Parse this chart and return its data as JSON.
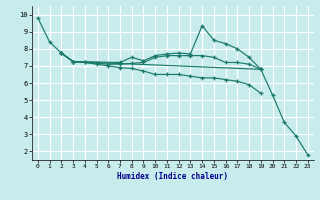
{
  "title": "",
  "xlabel": "Humidex (Indice chaleur)",
  "bg_color": "#c8ecec",
  "grid_color": "#ffffff",
  "line_color": "#1a7a6a",
  "xlim": [
    -0.5,
    23.5
  ],
  "ylim": [
    1.5,
    10.5
  ],
  "xticks": [
    0,
    1,
    2,
    3,
    4,
    5,
    6,
    7,
    8,
    9,
    10,
    11,
    12,
    13,
    14,
    15,
    16,
    17,
    18,
    19,
    20,
    21,
    22,
    23
  ],
  "yticks": [
    2,
    3,
    4,
    5,
    6,
    7,
    8,
    9,
    10
  ],
  "lines": [
    {
      "x": [
        0,
        1,
        2,
        3,
        19,
        20,
        21,
        22,
        23
      ],
      "y": [
        9.8,
        8.4,
        7.75,
        7.25,
        6.8,
        5.3,
        3.7,
        2.9,
        1.8
      ]
    },
    {
      "x": [
        2,
        3,
        7,
        8,
        9,
        10,
        11,
        12,
        13,
        14,
        15,
        16,
        17,
        18,
        19
      ],
      "y": [
        7.75,
        7.25,
        7.2,
        7.5,
        7.3,
        7.6,
        7.7,
        7.75,
        7.7,
        9.35,
        8.5,
        8.3,
        8.0,
        7.5,
        6.8
      ]
    },
    {
      "x": [
        2,
        3,
        4,
        5,
        6,
        7,
        8,
        9,
        10,
        11,
        12,
        13,
        14,
        15,
        16,
        17,
        18,
        19
      ],
      "y": [
        7.75,
        7.25,
        7.2,
        7.15,
        7.1,
        7.1,
        7.15,
        7.2,
        7.5,
        7.6,
        7.6,
        7.6,
        7.6,
        7.5,
        7.2,
        7.2,
        7.1,
        6.8
      ]
    },
    {
      "x": [
        2,
        3,
        4,
        5,
        6,
        7,
        8,
        9,
        10,
        11,
        12,
        13,
        14,
        15,
        16,
        17,
        18,
        19
      ],
      "y": [
        7.75,
        7.25,
        7.2,
        7.1,
        7.0,
        6.9,
        6.85,
        6.7,
        6.5,
        6.5,
        6.5,
        6.4,
        6.3,
        6.3,
        6.2,
        6.1,
        5.9,
        5.4
      ]
    }
  ]
}
